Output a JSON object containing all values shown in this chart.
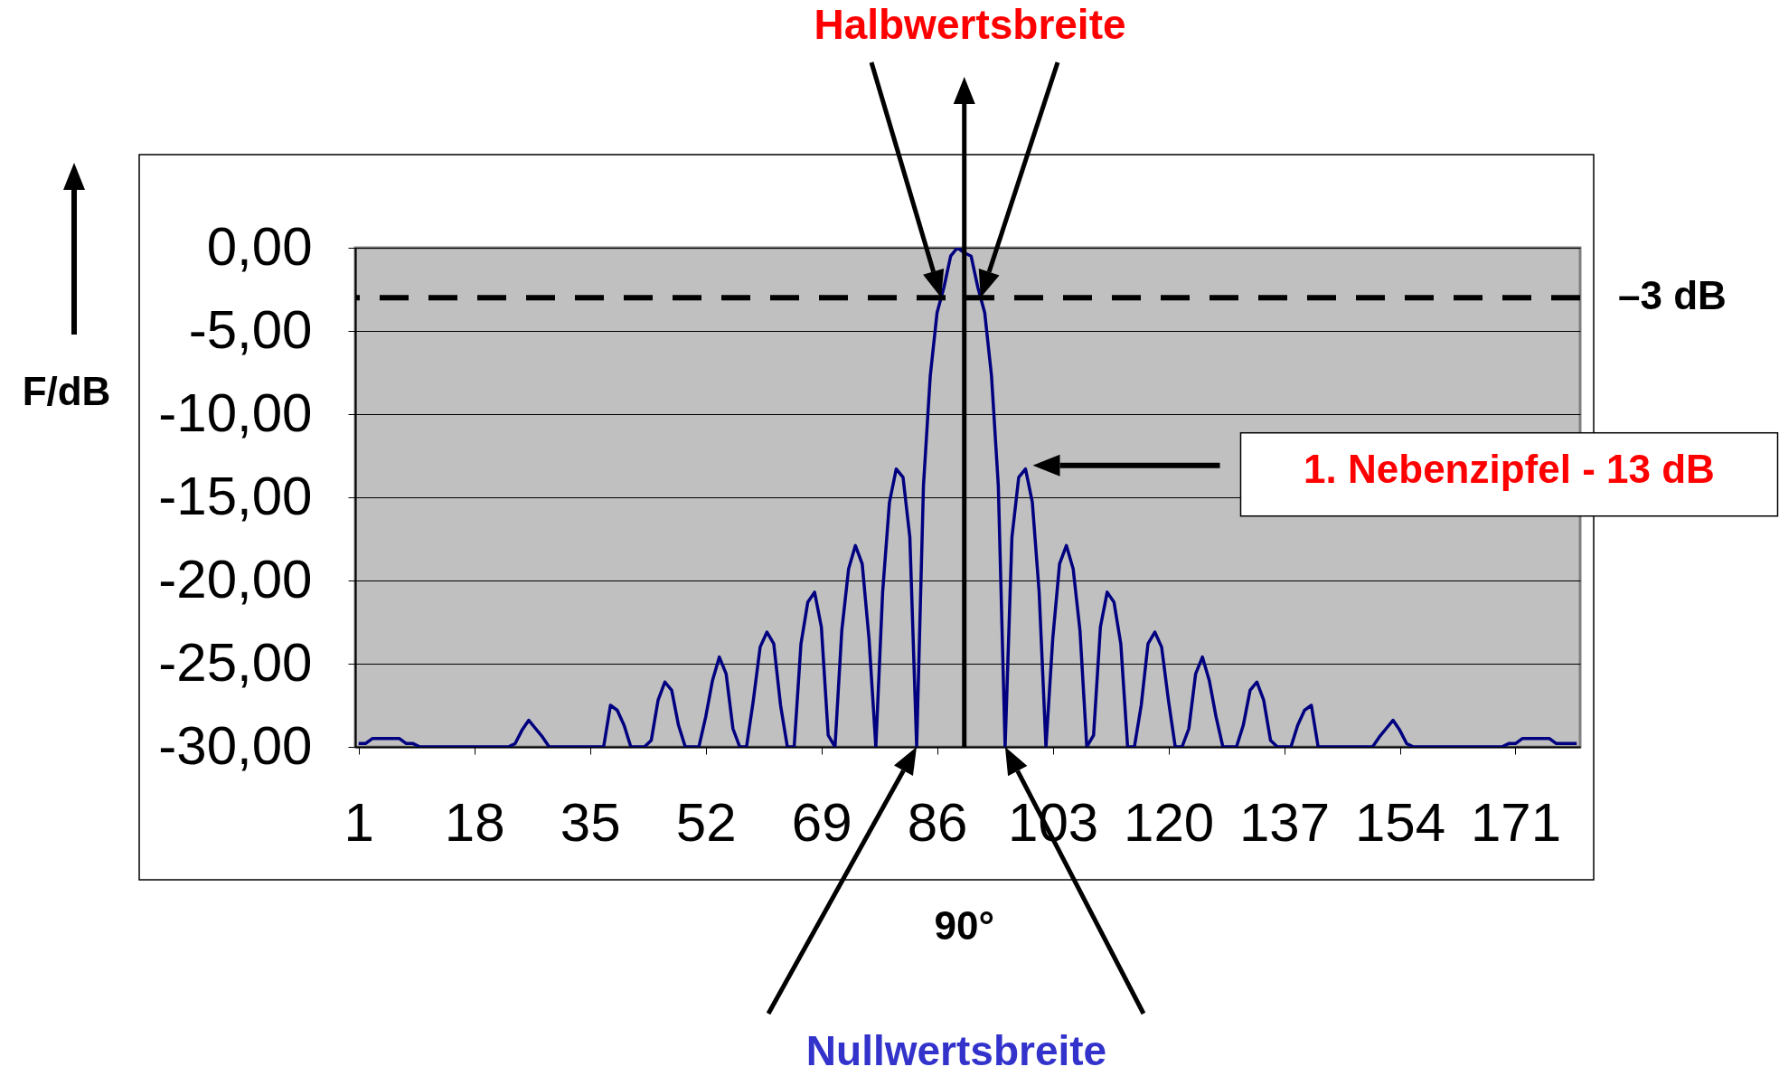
{
  "chart_data": {
    "type": "line",
    "ylabel": "F/dB",
    "color": "#000080",
    "x": [
      1,
      2,
      3,
      4,
      5,
      6,
      7,
      8,
      9,
      10,
      11,
      12,
      13,
      14,
      15,
      16,
      17,
      18,
      19,
      20,
      21,
      22,
      23,
      24,
      25,
      26,
      27,
      28,
      29,
      30,
      31,
      32,
      33,
      34,
      35,
      36,
      37,
      38,
      39,
      40,
      41,
      42,
      43,
      44,
      45,
      46,
      47,
      48,
      49,
      50,
      51,
      52,
      53,
      54,
      55,
      56,
      57,
      58,
      59,
      60,
      61,
      62,
      63,
      64,
      65,
      66,
      67,
      68,
      69,
      70,
      71,
      72,
      73,
      74,
      75,
      76,
      77,
      78,
      79,
      80,
      81,
      82,
      83,
      84,
      85,
      86,
      87,
      88,
      89,
      90,
      91,
      92,
      93,
      94,
      95,
      96,
      97,
      98,
      99,
      100,
      101,
      102,
      103,
      104,
      105,
      106,
      107,
      108,
      109,
      110,
      111,
      112,
      113,
      114,
      115,
      116,
      117,
      118,
      119,
      120,
      121,
      122,
      123,
      124,
      125,
      126,
      127,
      128,
      129,
      130,
      131,
      132,
      133,
      134,
      135,
      136,
      137,
      138,
      139,
      140,
      141,
      142,
      143,
      144,
      145,
      146,
      147,
      148,
      149,
      150,
      151,
      152,
      153,
      154,
      155,
      156,
      157,
      158,
      159,
      160,
      161,
      162,
      163,
      164,
      165,
      166,
      167,
      168,
      169,
      170,
      171,
      172,
      173,
      174,
      175,
      176,
      177,
      178,
      179,
      180
    ],
    "values": [
      -29.8,
      -29.8,
      -29.5,
      -29.5,
      -29.5,
      -29.5,
      -29.5,
      -29.8,
      -29.8,
      -30,
      -30,
      -30,
      -30,
      -30,
      -30,
      -30,
      -30,
      -30,
      -30,
      -30,
      -30,
      -30,
      -30,
      -29.8,
      -29.0,
      -28.4,
      -28.9,
      -29.4,
      -30,
      -30,
      -30,
      -30,
      -30,
      -30,
      -30,
      -30,
      -30,
      -27.5,
      -27.8,
      -28.7,
      -30,
      -30,
      -30,
      -29.6,
      -27.2,
      -26.1,
      -26.6,
      -28.7,
      -30,
      -30,
      -30,
      -28.2,
      -26.0,
      -24.6,
      -25.6,
      -28.9,
      -30,
      -30,
      -27.2,
      -24.0,
      -23.1,
      -23.8,
      -27.5,
      -30,
      -30,
      -23.8,
      -21.3,
      -20.7,
      -22.8,
      -29.3,
      -30,
      -23.0,
      -19.3,
      -17.9,
      -19.0,
      -23.5,
      -30,
      -20.7,
      -15.3,
      -13.3,
      -13.8,
      -17.4,
      -30,
      -14.3,
      -7.7,
      -3.9,
      -2.4,
      -0.5,
      0,
      -0.3,
      -0.5,
      -2.4,
      -3.9,
      -7.7,
      -14.3,
      -30,
      -17.4,
      -13.8,
      -13.3,
      -15.3,
      -20.7,
      -30,
      -23.5,
      -19.0,
      -17.9,
      -19.3,
      -23.0,
      -30,
      -29.3,
      -22.8,
      -20.7,
      -21.3,
      -23.8,
      -30,
      -30,
      -27.5,
      -23.8,
      -23.1,
      -24.0,
      -27.2,
      -30,
      -30,
      -28.9,
      -25.6,
      -24.6,
      -26.0,
      -28.2,
      -30,
      -30,
      -30,
      -28.7,
      -26.6,
      -26.1,
      -27.2,
      -29.6,
      -30,
      -30,
      -30,
      -28.7,
      -27.8,
      -27.5,
      -30,
      -30,
      -30,
      -30,
      -30,
      -30,
      -30,
      -30,
      -30,
      -29.4,
      -28.9,
      -28.4,
      -29.0,
      -29.8,
      -30,
      -30,
      -30,
      -30,
      -30,
      -30,
      -30,
      -30,
      -30,
      -30,
      -30,
      -30,
      -30,
      -30,
      -29.8,
      -29.8,
      -29.5,
      -29.5,
      -29.5,
      -29.5,
      -29.5,
      -29.8,
      -29.8,
      -29.8,
      -29.8
    ],
    "xlim": [
      0.5,
      180.5
    ],
    "xticks": [
      1,
      18,
      35,
      52,
      69,
      86,
      103,
      120,
      137,
      154,
      171
    ],
    "ylim": [
      -30,
      0
    ],
    "yticks": [
      {
        "value": 0,
        "label": "0,00"
      },
      {
        "value": -5,
        "label": "-5,00"
      },
      {
        "value": -10,
        "label": "-10,00"
      },
      {
        "value": -15,
        "label": "-15,00"
      },
      {
        "value": -20,
        "label": "-20,00"
      },
      {
        "value": -25,
        "label": "-25,00"
      },
      {
        "value": -30,
        "label": "-30,00"
      }
    ],
    "grid": "y",
    "ref_lines": [
      {
        "axis": "y",
        "value": -3,
        "label": "–3 dB",
        "color": "#000000",
        "line_style": "dashed"
      },
      {
        "axis": "x",
        "value": 90,
        "color": "#000000",
        "line_style": "solid"
      }
    ],
    "annotations": [
      "Halbwertsbreite",
      "Nullwertsbreite",
      "1. Nebenzipfel - 13 dB",
      "90°"
    ]
  }
}
